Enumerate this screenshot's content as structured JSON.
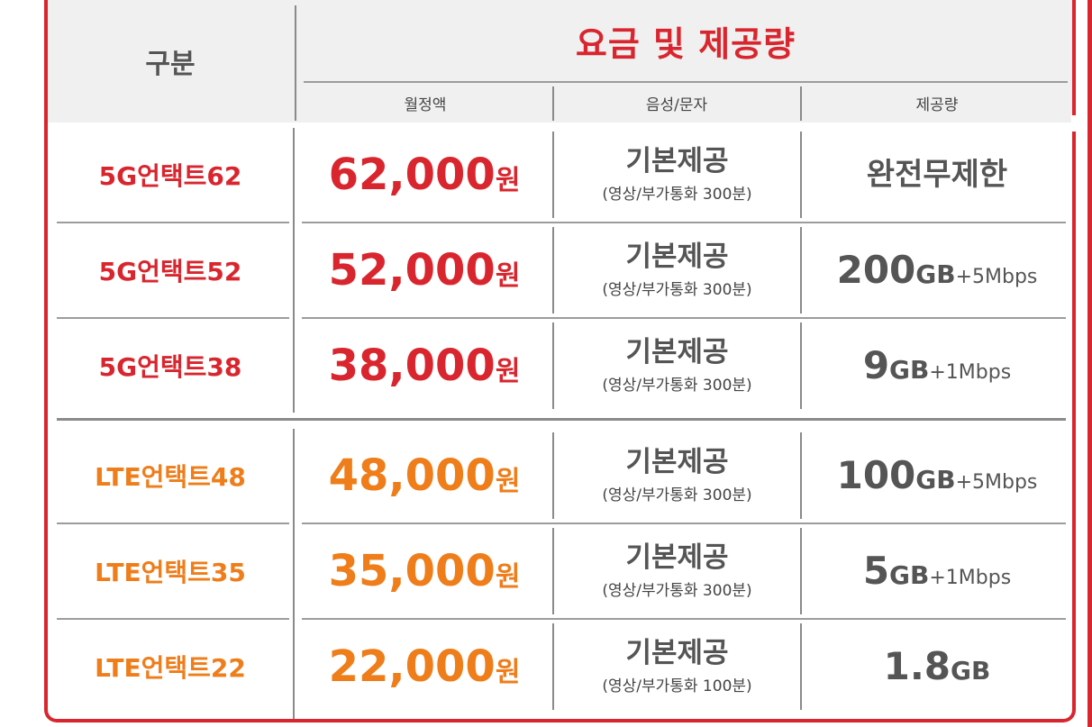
{
  "header": {
    "gubun": "구분",
    "main_title": "요금 및 제공량",
    "col_monthly": "월정액",
    "col_voice": "음성/문자",
    "col_data": "제공량"
  },
  "rows": [
    {
      "plan": "5G언택트62",
      "price": "62,000",
      "won": "원",
      "voice": "기본제공",
      "voice_sub": "(영상/부가통화 300분)",
      "data_amount": "완전무제한",
      "data_unit": "",
      "data_speed": ""
    },
    {
      "plan": "5G언택트52",
      "price": "52,000",
      "won": "원",
      "voice": "기본제공",
      "voice_sub": "(영상/부가통화 300분)",
      "data_amount": "200",
      "data_unit": "GB",
      "data_speed": "+5Mbps"
    },
    {
      "plan": "5G언택트38",
      "price": "38,000",
      "won": "원",
      "voice": "기본제공",
      "voice_sub": "(영상/부가통화 300분)",
      "data_amount": "9",
      "data_unit": "GB",
      "data_speed": "+1Mbps"
    },
    {
      "plan": "LTE언택트48",
      "price": "48,000",
      "won": "원",
      "voice": "기본제공",
      "voice_sub": "(영상/부가통화 300분)",
      "data_amount": "100",
      "data_unit": "GB",
      "data_speed": "+5Mbps"
    },
    {
      "plan": "LTE언택트35",
      "price": "35,000",
      "won": "원",
      "voice": "기본제공",
      "voice_sub": "(영상/부가통화 300분)",
      "data_amount": "5",
      "data_unit": "GB",
      "data_speed": "+1Mbps"
    },
    {
      "plan": "LTE언택트22",
      "price": "22,000",
      "won": "원",
      "voice": "기본제공",
      "voice_sub": "(영상/부가통화 100분)",
      "data_amount": "1.8",
      "data_unit": "GB",
      "data_speed": ""
    }
  ],
  "colors": {
    "frame_red": "#d9262e",
    "five_g": "#d9262e",
    "lte": "#ee7d1a",
    "text_gray": "#555555",
    "header_bg": "#f0f0f0"
  }
}
